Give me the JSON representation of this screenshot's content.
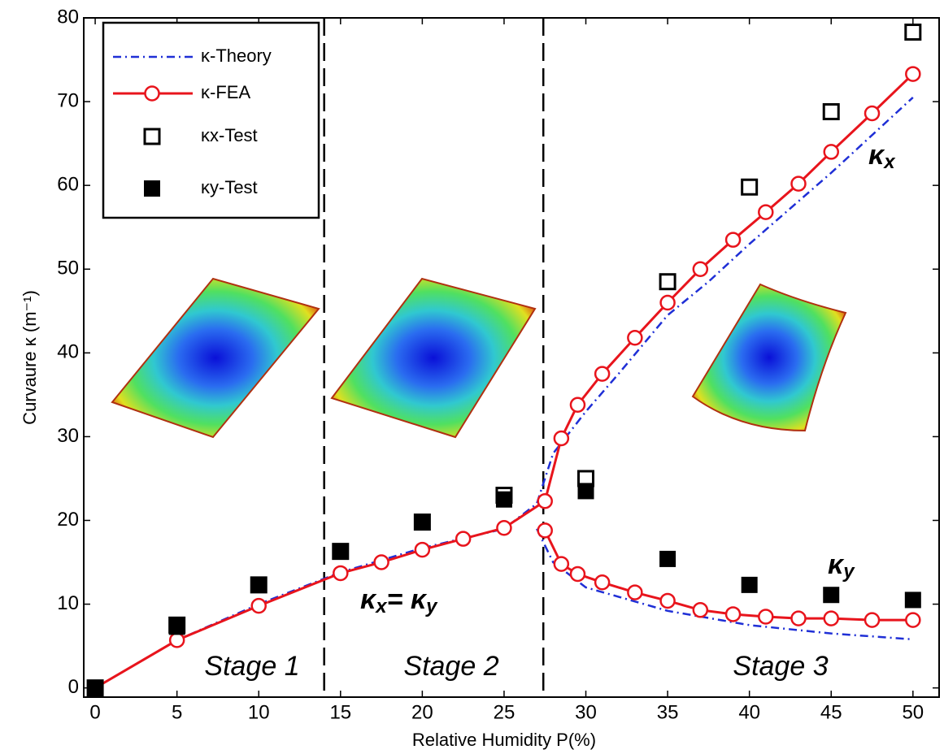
{
  "chart_data": {
    "type": "line",
    "xlabel": "Relative Humidity P(%)",
    "ylabel": "Curvaure κ (m⁻¹)",
    "xlim": [
      -0.7,
      51.6
    ],
    "ylim": [
      -1.1,
      80
    ],
    "xticks": [
      0,
      5,
      10,
      15,
      20,
      25,
      30,
      35,
      40,
      45,
      50
    ],
    "yticks": [
      0,
      10,
      20,
      30,
      40,
      50,
      60,
      70,
      80
    ],
    "stage_boundaries": [
      14,
      27.4
    ],
    "legend": "upper left",
    "series": [
      {
        "name": "κ-Theory",
        "color": "#1f2fd6",
        "line": "dashdot",
        "marker": "none",
        "x": [
          0,
          5,
          10,
          15,
          20,
          25,
          27,
          28,
          30,
          32,
          35,
          37.5,
          40,
          45,
          50,
          null,
          27,
          28,
          30,
          35,
          40,
          45,
          50
        ],
        "values": [
          0,
          5.7,
          10,
          13.8,
          16.7,
          19,
          22,
          28,
          33,
          37.5,
          44.5,
          48.5,
          53,
          61.5,
          70.5,
          null,
          19,
          15,
          12,
          9.2,
          7.5,
          6.5,
          5.8
        ]
      },
      {
        "name": "κ-FEA",
        "color": "#e8141c",
        "line": "solid",
        "marker": "circle",
        "x": [
          0,
          5,
          10,
          15,
          17.5,
          20,
          22.5,
          25,
          27.5,
          28.5,
          29.5,
          31,
          33,
          35,
          37,
          39,
          41,
          43,
          45,
          47.5,
          50,
          null,
          27.5,
          28.5,
          29.5,
          31,
          33,
          35,
          37,
          39,
          41,
          43,
          45,
          47.5,
          50
        ],
        "values": [
          0,
          5.7,
          9.8,
          13.7,
          15,
          16.5,
          17.8,
          19.1,
          22.3,
          29.8,
          33.8,
          37.5,
          41.8,
          46,
          50,
          53.5,
          56.8,
          60.2,
          64,
          68.6,
          73.3,
          null,
          18.8,
          14.8,
          13.6,
          12.6,
          11.4,
          10.4,
          9.3,
          8.8,
          8.5,
          8.3,
          8.3,
          8.1,
          8.1
        ]
      },
      {
        "name": "κx-Test",
        "color": "#000000",
        "line": "none",
        "marker": "square-open",
        "x": [
          0,
          5,
          10,
          15,
          20,
          25,
          30,
          35,
          40,
          45,
          50
        ],
        "values": [
          0,
          7.5,
          12.3,
          16.3,
          19.8,
          23,
          25,
          48.5,
          59.8,
          68.8,
          78.3
        ]
      },
      {
        "name": "κy-Test",
        "color": "#000000",
        "line": "none",
        "marker": "square-filled",
        "x": [
          0,
          5,
          10,
          15,
          20,
          25,
          30,
          35,
          40,
          45,
          50
        ],
        "values": [
          0,
          7.3,
          12.3,
          16.3,
          19.8,
          22.5,
          23.5,
          15.4,
          12.3,
          11.1,
          10.5
        ]
      }
    ],
    "annotations": [
      {
        "parts": [
          "Stage 1"
        ]
      },
      {
        "parts": [
          "Stage 2"
        ]
      },
      {
        "parts": [
          "Stage 3"
        ]
      },
      {
        "parts": [
          "κ",
          "x"
        ]
      },
      {
        "parts": [
          "κ",
          "y"
        ]
      },
      {
        "parts": [
          "κ",
          "x",
          "= κ",
          "y"
        ]
      }
    ]
  }
}
